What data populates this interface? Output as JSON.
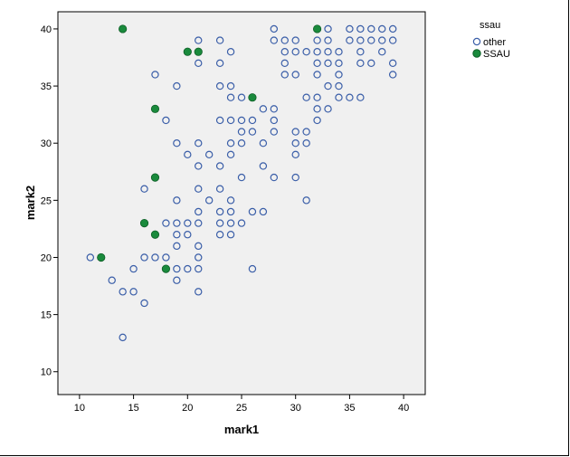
{
  "chart_data": {
    "type": "scatter",
    "xlabel": "mark1",
    "ylabel": "mark2",
    "xlim": [
      8,
      42
    ],
    "ylim": [
      8,
      41.5
    ],
    "xticks": [
      10,
      15,
      20,
      25,
      30,
      35,
      40
    ],
    "yticks": [
      10,
      15,
      20,
      25,
      30,
      35,
      40
    ],
    "grid": false,
    "legend": {
      "title": "ssau",
      "position": "right"
    },
    "colors": {
      "other": "#3a5ea8",
      "SSAU": "#1a8a3c",
      "plot_bg": "#f0f0f0"
    },
    "series": [
      {
        "name": "other",
        "marker": "open-circle",
        "points": [
          [
            11,
            20
          ],
          [
            12,
            20
          ],
          [
            13,
            18
          ],
          [
            14,
            17
          ],
          [
            14,
            13
          ],
          [
            15,
            17
          ],
          [
            15,
            19
          ],
          [
            16,
            16
          ],
          [
            16,
            20
          ],
          [
            16,
            26
          ],
          [
            17,
            20
          ],
          [
            17,
            22
          ],
          [
            17,
            36
          ],
          [
            18,
            19
          ],
          [
            18,
            20
          ],
          [
            18,
            23
          ],
          [
            18,
            32
          ],
          [
            19,
            18
          ],
          [
            19,
            19
          ],
          [
            19,
            21
          ],
          [
            19,
            22
          ],
          [
            19,
            23
          ],
          [
            19,
            25
          ],
          [
            19,
            30
          ],
          [
            19,
            35
          ],
          [
            20,
            19
          ],
          [
            20,
            22
          ],
          [
            20,
            23
          ],
          [
            20,
            29
          ],
          [
            21,
            17
          ],
          [
            21,
            19
          ],
          [
            21,
            20
          ],
          [
            21,
            21
          ],
          [
            21,
            23
          ],
          [
            21,
            24
          ],
          [
            21,
            26
          ],
          [
            21,
            28
          ],
          [
            21,
            30
          ],
          [
            21,
            37
          ],
          [
            21,
            39
          ],
          [
            22,
            25
          ],
          [
            22,
            29
          ],
          [
            23,
            22
          ],
          [
            23,
            23
          ],
          [
            23,
            24
          ],
          [
            23,
            26
          ],
          [
            23,
            28
          ],
          [
            23,
            32
          ],
          [
            23,
            35
          ],
          [
            23,
            37
          ],
          [
            23,
            39
          ],
          [
            24,
            22
          ],
          [
            24,
            23
          ],
          [
            24,
            24
          ],
          [
            24,
            25
          ],
          [
            24,
            29
          ],
          [
            24,
            30
          ],
          [
            24,
            32
          ],
          [
            24,
            34
          ],
          [
            24,
            35
          ],
          [
            24,
            38
          ],
          [
            25,
            23
          ],
          [
            25,
            27
          ],
          [
            25,
            30
          ],
          [
            25,
            31
          ],
          [
            25,
            32
          ],
          [
            25,
            34
          ],
          [
            26,
            19
          ],
          [
            26,
            24
          ],
          [
            26,
            31
          ],
          [
            26,
            32
          ],
          [
            26,
            34
          ],
          [
            27,
            24
          ],
          [
            27,
            28
          ],
          [
            27,
            30
          ],
          [
            27,
            33
          ],
          [
            28,
            27
          ],
          [
            28,
            31
          ],
          [
            28,
            32
          ],
          [
            28,
            33
          ],
          [
            28,
            39
          ],
          [
            28,
            40
          ],
          [
            29,
            36
          ],
          [
            29,
            37
          ],
          [
            29,
            38
          ],
          [
            29,
            39
          ],
          [
            30,
            27
          ],
          [
            30,
            29
          ],
          [
            30,
            30
          ],
          [
            30,
            31
          ],
          [
            30,
            36
          ],
          [
            30,
            38
          ],
          [
            30,
            39
          ],
          [
            31,
            25
          ],
          [
            31,
            30
          ],
          [
            31,
            31
          ],
          [
            31,
            34
          ],
          [
            31,
            38
          ],
          [
            32,
            32
          ],
          [
            32,
            33
          ],
          [
            32,
            34
          ],
          [
            32,
            36
          ],
          [
            32,
            37
          ],
          [
            32,
            38
          ],
          [
            32,
            39
          ],
          [
            33,
            33
          ],
          [
            33,
            35
          ],
          [
            33,
            37
          ],
          [
            33,
            38
          ],
          [
            33,
            39
          ],
          [
            33,
            40
          ],
          [
            34,
            34
          ],
          [
            34,
            35
          ],
          [
            34,
            36
          ],
          [
            34,
            37
          ],
          [
            34,
            38
          ],
          [
            35,
            34
          ],
          [
            35,
            39
          ],
          [
            35,
            40
          ],
          [
            36,
            34
          ],
          [
            36,
            37
          ],
          [
            36,
            38
          ],
          [
            36,
            39
          ],
          [
            36,
            40
          ],
          [
            37,
            37
          ],
          [
            37,
            39
          ],
          [
            37,
            40
          ],
          [
            38,
            38
          ],
          [
            38,
            39
          ],
          [
            38,
            40
          ],
          [
            39,
            36
          ],
          [
            39,
            37
          ],
          [
            39,
            39
          ],
          [
            39,
            40
          ]
        ]
      },
      {
        "name": "SSAU",
        "marker": "filled-circle",
        "points": [
          [
            12,
            20
          ],
          [
            14,
            40
          ],
          [
            16,
            23
          ],
          [
            17,
            22
          ],
          [
            17,
            27
          ],
          [
            17,
            33
          ],
          [
            18,
            19
          ],
          [
            20,
            38
          ],
          [
            21,
            38
          ],
          [
            26,
            34
          ],
          [
            32,
            40
          ]
        ]
      }
    ]
  }
}
